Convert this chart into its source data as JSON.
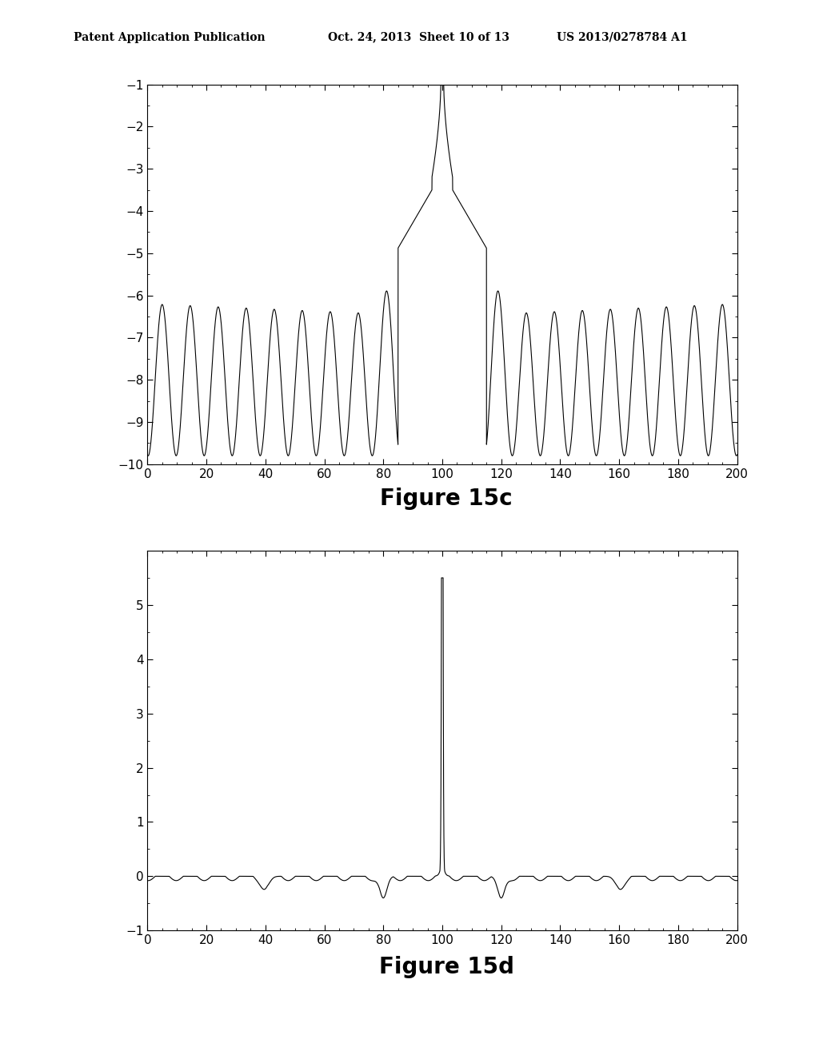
{
  "fig15c": {
    "title": "Figure 15c",
    "xlim": [
      0,
      200
    ],
    "ylim": [
      -10,
      -1
    ],
    "xticks": [
      0,
      20,
      40,
      60,
      80,
      100,
      120,
      140,
      160,
      180,
      200
    ],
    "yticks": [
      -1,
      -2,
      -3,
      -4,
      -5,
      -6,
      -7,
      -8,
      -9,
      -10
    ],
    "peak_x": 100
  },
  "fig15d": {
    "title": "Figure 15d",
    "xlim": [
      0,
      200
    ],
    "ylim": [
      -1,
      6
    ],
    "xticks": [
      0,
      20,
      40,
      60,
      80,
      100,
      120,
      140,
      160,
      180,
      200
    ],
    "yticks": [
      -1,
      0,
      1,
      2,
      3,
      4,
      5
    ],
    "peak_x": 100,
    "peak_y": 5.5
  },
  "line_color": "#000000",
  "line_width": 0.8,
  "background_color": "#ffffff",
  "header_left": "Patent Application Publication",
  "header_mid": "Oct. 24, 2013  Sheet 10 of 13",
  "header_right": "US 2013/0278784 A1",
  "title_fontsize": 20,
  "tick_fontsize": 11,
  "header_fontsize": 10
}
